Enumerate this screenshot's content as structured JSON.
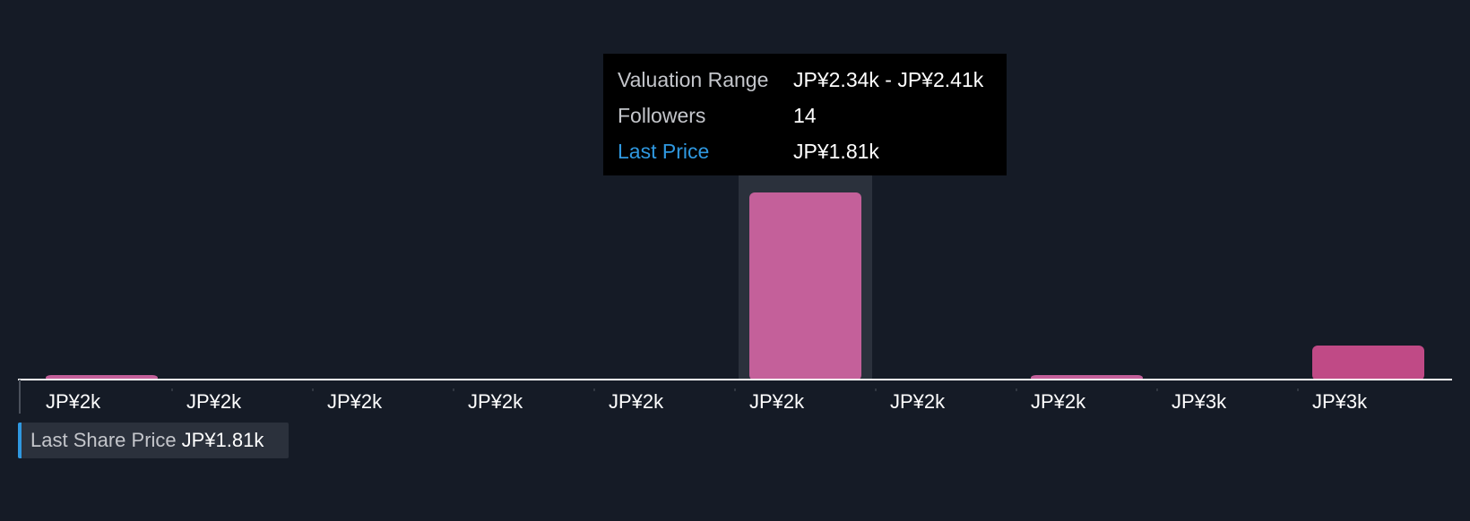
{
  "chart_data": {
    "type": "bar",
    "categories": [
      "JP¥2k",
      "JP¥2k",
      "JP¥2k",
      "JP¥2k",
      "JP¥2k",
      "JP¥2k",
      "JP¥2k",
      "JP¥2k",
      "JP¥3k",
      "JP¥3k"
    ],
    "values": [
      0.3,
      0,
      0,
      0,
      0,
      14,
      0,
      0.3,
      0,
      2.5
    ],
    "highlight_index": 5,
    "bar_color": "#c4609a",
    "bar_color_highlight": "#c4609a",
    "bar_color_edge": "#c04a86",
    "ylim": [
      0,
      14.5
    ],
    "grid": false,
    "legend": "none"
  },
  "tooltip": {
    "rows": [
      {
        "label": "Valuation Range",
        "value": "JP¥2.34k - JP¥2.41k"
      },
      {
        "label": "Followers",
        "value": "14"
      },
      {
        "label": "Last Price",
        "value": "JP¥1.81k"
      }
    ]
  },
  "last_share_price": {
    "label": "Last Share Price",
    "value": "JP¥1.81k"
  },
  "colors": {
    "background": "#151b26",
    "accent": "#2f98e0",
    "axis": "#ffffff"
  }
}
